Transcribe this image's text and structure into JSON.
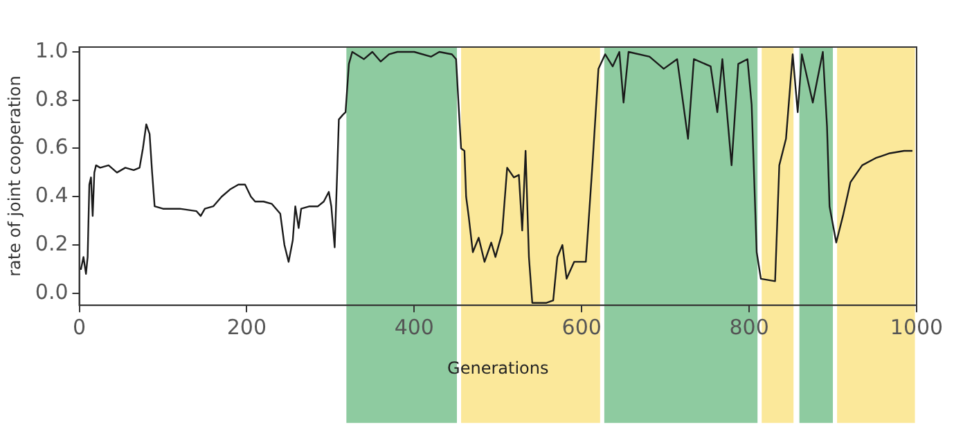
{
  "chart_data": {
    "type": "line",
    "xlabel": "Generations",
    "ylabel": "rate of joint cooperation",
    "xlim": [
      0,
      1000
    ],
    "xticks": [
      0,
      200,
      400,
      600,
      800,
      1000
    ],
    "ylim": [
      -0.05,
      1.02
    ],
    "yticks": [
      {
        "value": 0,
        "label": "0.0"
      },
      {
        "value": 0.2,
        "label": "0.2"
      },
      {
        "value": 0.4,
        "label": "0.4"
      },
      {
        "value": 0.6,
        "label": "0.6"
      },
      {
        "value": 0.8,
        "label": "0.8"
      },
      {
        "value": 1,
        "label": "1.0"
      }
    ],
    "grid": false,
    "legend": false,
    "marker": "none",
    "line_style": "solid",
    "bands": [
      {
        "axis": "x",
        "from": 319,
        "to": 451,
        "color": "#8ecba0"
      },
      {
        "axis": "x",
        "from": 456,
        "to": 622,
        "color": "#fbe89a"
      },
      {
        "axis": "x",
        "from": 627,
        "to": 810,
        "color": "#8ecba0"
      },
      {
        "axis": "x",
        "from": 815,
        "to": 853,
        "color": "#fbe89a"
      },
      {
        "axis": "x",
        "from": 860,
        "to": 900,
        "color": "#8ecba0"
      },
      {
        "axis": "x",
        "from": 905,
        "to": 998,
        "color": "#fbe89a"
      }
    ],
    "series": [
      {
        "color": "#1a1a1a",
        "x": [
          1,
          2,
          5,
          8,
          10,
          12,
          14,
          16,
          18,
          20,
          25,
          35,
          45,
          55,
          65,
          72,
          76,
          80,
          84,
          87,
          90,
          100,
          120,
          140,
          145,
          150,
          160,
          170,
          180,
          190,
          198,
          205,
          210,
          220,
          230,
          240,
          245,
          250,
          255,
          258,
          262,
          265,
          275,
          285,
          292,
          298,
          301,
          305,
          308,
          310,
          315,
          318,
          322,
          326,
          340,
          350,
          360,
          370,
          380,
          400,
          420,
          430,
          445,
          450,
          453,
          456,
          460,
          462,
          465,
          470,
          477,
          484,
          492,
          497,
          505,
          511,
          519,
          525,
          529,
          533,
          537,
          541,
          558,
          566,
          571,
          577,
          582,
          591,
          605,
          613,
          620,
          628,
          637,
          645,
          650,
          656,
          681,
          698,
          714,
          727,
          734,
          754,
          762,
          768,
          779,
          787,
          798,
          803,
          809,
          814,
          831,
          836,
          844,
          852,
          858,
          863,
          876,
          888,
          893,
          896,
          904,
          912,
          921,
          935,
          951,
          968,
          985,
          995
        ],
        "values": [
          0.1,
          0.1,
          0.15,
          0.08,
          0.15,
          0.45,
          0.48,
          0.32,
          0.5,
          0.53,
          0.52,
          0.53,
          0.5,
          0.52,
          0.51,
          0.52,
          0.6,
          0.7,
          0.66,
          0.5,
          0.36,
          0.35,
          0.35,
          0.34,
          0.32,
          0.35,
          0.36,
          0.4,
          0.43,
          0.45,
          0.45,
          0.4,
          0.38,
          0.38,
          0.37,
          0.33,
          0.2,
          0.13,
          0.22,
          0.36,
          0.27,
          0.35,
          0.36,
          0.36,
          0.38,
          0.42,
          0.36,
          0.19,
          0.5,
          0.72,
          0.74,
          0.75,
          0.95,
          1.0,
          0.97,
          1.0,
          0.96,
          0.99,
          1.0,
          1.0,
          0.98,
          1.0,
          0.99,
          0.97,
          0.78,
          0.6,
          0.59,
          0.4,
          0.32,
          0.17,
          0.23,
          0.13,
          0.21,
          0.15,
          0.25,
          0.52,
          0.48,
          0.49,
          0.26,
          0.59,
          0.15,
          -0.04,
          -0.04,
          -0.03,
          0.15,
          0.2,
          0.06,
          0.13,
          0.13,
          0.54,
          0.93,
          0.99,
          0.94,
          1.0,
          0.79,
          1.0,
          0.98,
          0.93,
          0.97,
          0.64,
          0.97,
          0.94,
          0.75,
          0.97,
          0.53,
          0.95,
          0.97,
          0.78,
          0.17,
          0.06,
          0.05,
          0.53,
          0.64,
          0.99,
          0.75,
          0.99,
          0.79,
          1.0,
          0.69,
          0.36,
          0.21,
          0.32,
          0.46,
          0.53,
          0.56,
          0.58,
          0.59,
          0.59
        ]
      }
    ]
  }
}
